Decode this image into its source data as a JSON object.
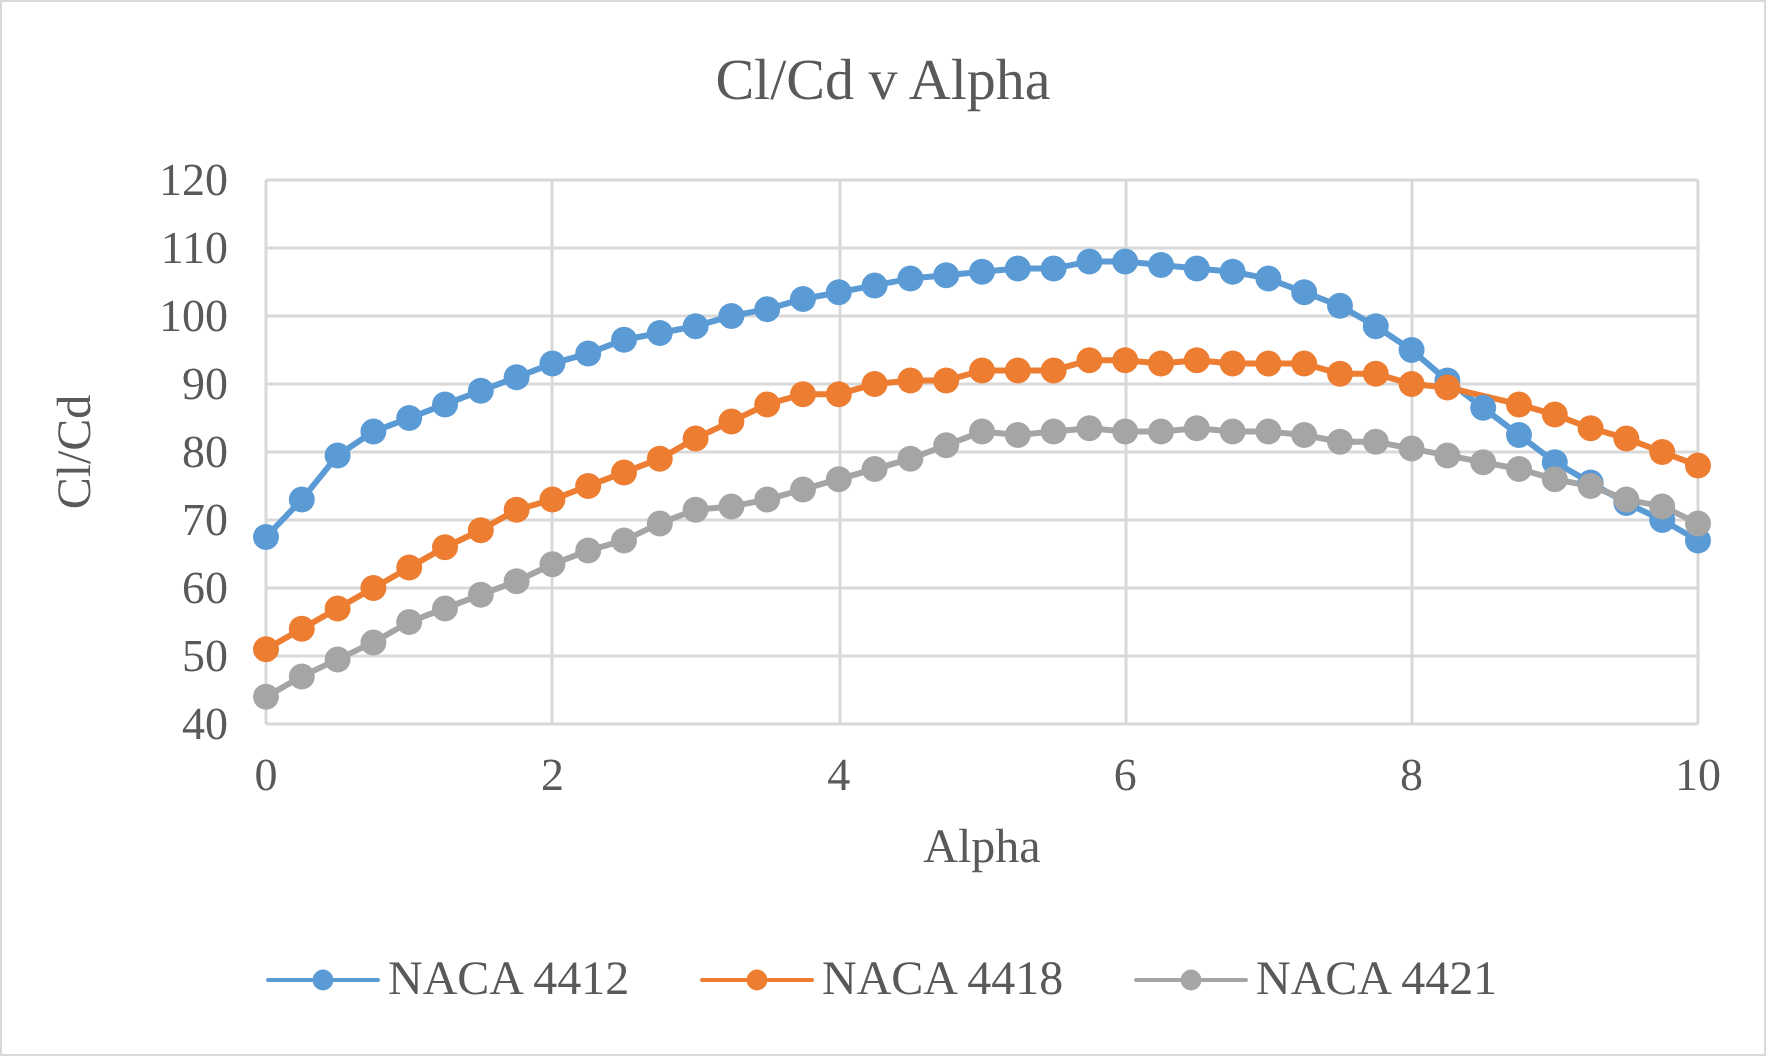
{
  "chart_data": {
    "type": "line",
    "title": "Cl/Cd v Alpha",
    "xlabel": "Alpha",
    "ylabel": "Cl/Cd",
    "x": [
      0,
      0.25,
      0.5,
      0.75,
      1,
      1.25,
      1.5,
      1.75,
      2,
      2.25,
      2.5,
      2.75,
      3,
      3.25,
      3.5,
      3.75,
      4,
      4.25,
      4.5,
      4.75,
      5,
      5.25,
      5.5,
      5.75,
      6,
      6.25,
      6.5,
      6.75,
      7,
      7.25,
      7.5,
      7.75,
      8,
      8.25,
      8.5,
      8.75,
      9,
      9.25,
      9.5,
      9.75,
      10
    ],
    "series": [
      {
        "name": "NACA 4412",
        "color": "#5b9bd5",
        "values": [
          67.5,
          73,
          79.5,
          83,
          85,
          87,
          89,
          91,
          93,
          94.5,
          96.5,
          97.5,
          98.5,
          100,
          101,
          102.5,
          103.5,
          104.5,
          105.5,
          106,
          106.5,
          107,
          107,
          108,
          108,
          107.5,
          107,
          106.5,
          105.5,
          103.5,
          101.5,
          98.5,
          95,
          90.5,
          86.5,
          82.5,
          78.5,
          75.5,
          72.5,
          70,
          67
        ]
      },
      {
        "name": "NACA 4418",
        "color": "#ed7d31",
        "x": [
          0,
          0.25,
          0.5,
          0.75,
          1,
          1.25,
          1.5,
          1.75,
          2,
          2.25,
          2.5,
          2.75,
          3,
          3.25,
          3.5,
          3.75,
          4,
          4.25,
          4.5,
          4.75,
          5,
          5.25,
          5.5,
          5.75,
          6,
          6.25,
          6.5,
          6.75,
          7,
          7.25,
          7.5,
          7.75,
          8,
          8.25,
          8.75,
          9,
          9.25,
          9.5,
          9.75,
          10
        ],
        "values": [
          51,
          54,
          57,
          60,
          63,
          66,
          68.5,
          71.5,
          73,
          75,
          77,
          79,
          82,
          84.5,
          87,
          88.5,
          88.5,
          90,
          90.5,
          90.5,
          92,
          92,
          92,
          93.5,
          93.5,
          93,
          93.5,
          93,
          93,
          93,
          91.5,
          91.5,
          90,
          89.5,
          87,
          85.5,
          83.5,
          82,
          80,
          78
        ]
      },
      {
        "name": "NACA 4421",
        "color": "#a5a5a5",
        "values": [
          44,
          47,
          49.5,
          52,
          55,
          57,
          59,
          61,
          63.5,
          65.5,
          67,
          69.5,
          71.5,
          72,
          73,
          74.5,
          76,
          77.5,
          79,
          81,
          83,
          82.5,
          83,
          83.5,
          83,
          83,
          83.5,
          83,
          83,
          82.5,
          81.5,
          81.5,
          80.5,
          79.5,
          78.5,
          77.5,
          76,
          75,
          73,
          72,
          69.5
        ]
      }
    ],
    "xlim": [
      0,
      10
    ],
    "xticks": [
      0,
      2,
      4,
      6,
      8,
      10
    ],
    "ylim": [
      40,
      120
    ],
    "yticks": [
      40,
      50,
      60,
      70,
      80,
      90,
      100,
      110,
      120
    ],
    "grid": true,
    "legend": "bottom",
    "marker": "circle",
    "line_style": "solid"
  }
}
